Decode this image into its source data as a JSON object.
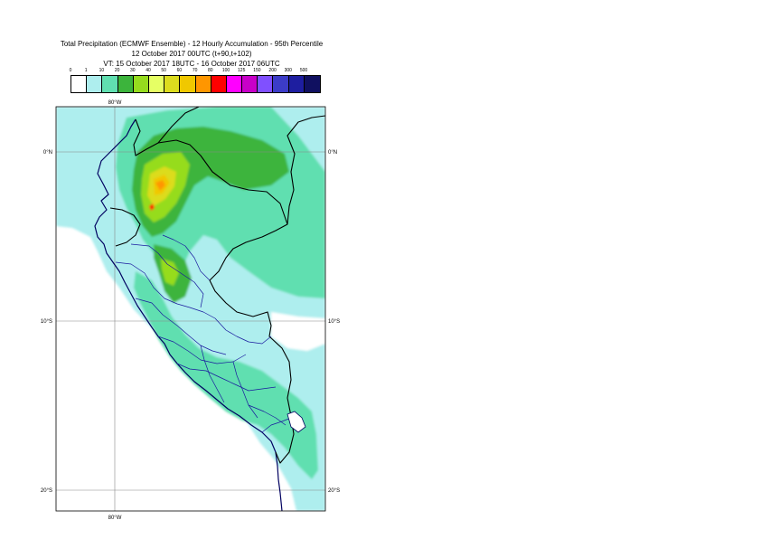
{
  "title": {
    "line1": "Total Precipitation (ECMWF Ensemble) - 12 Hourly Accumulation - 95th Percentile",
    "line2": "12 October 2017 00UTC (t+90,t+102)",
    "line3": "VT: 15 October 2017 18UTC - 16 October 2017 06UTC"
  },
  "legend": {
    "thresholds": [
      "0",
      "1",
      "10",
      "20",
      "30",
      "40",
      "50",
      "60",
      "70",
      "80",
      "100",
      "125",
      "150",
      "200",
      "300",
      "500"
    ],
    "colors": [
      "#ffffff",
      "#aeeeee",
      "#60dfb0",
      "#3cb43c",
      "#96dc1e",
      "#e6ff64",
      "#dcdc1e",
      "#f0c800",
      "#ff9600",
      "#ff0000",
      "#ff00ff",
      "#c800c8",
      "#8050ff",
      "#3c3cc8",
      "#1e1ea0",
      "#101060"
    ]
  },
  "axes": {
    "lon_top": "80°W",
    "lon_bottom": "80°W",
    "lat_0_left": "0°N",
    "lat_0_right": "0°N",
    "lat_10_left": "10°S",
    "lat_10_right": "10°S",
    "lat_20_left": "20°S",
    "lat_20_right": "20°S"
  }
}
